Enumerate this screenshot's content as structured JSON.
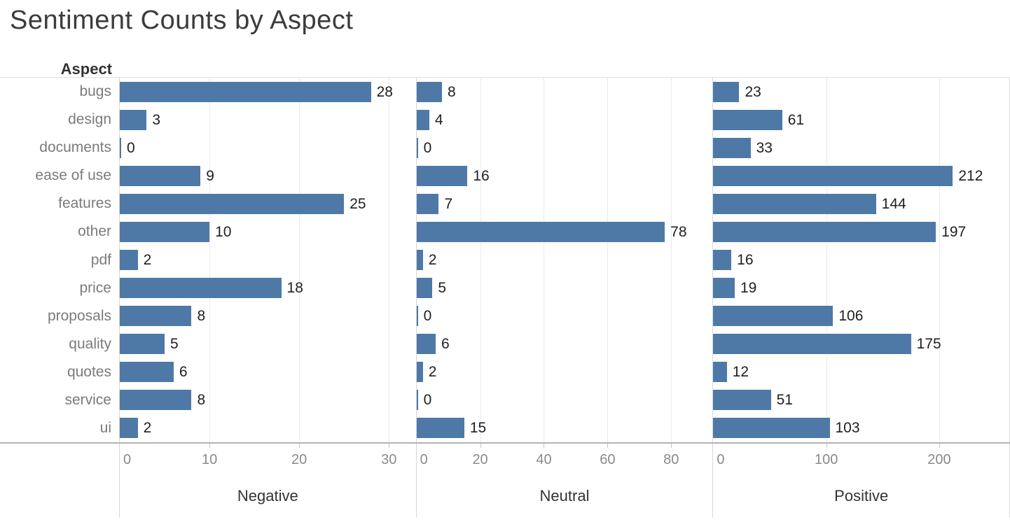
{
  "colors": {
    "bar": "#4e79a7",
    "gridline": "#eaeaea",
    "panel_border": "#d8d8d8",
    "axis_line": "#b3b3b3",
    "title_text": "#3d3b3b",
    "category_text": "#7b7b7b",
    "value_text": "#1f1f1f",
    "tick_text": "#8a8a8a",
    "panel_label_text": "#333333"
  },
  "chart_data": {
    "type": "bar",
    "orientation": "horizontal",
    "title": "Sentiment Counts by Aspect",
    "row_axis_label": "Aspect",
    "grid": true,
    "legend": "none",
    "categories": [
      "bugs",
      "design",
      "documents",
      "ease of use",
      "features",
      "other",
      "pdf",
      "price",
      "proposals",
      "quality",
      "quotes",
      "service",
      "ui"
    ],
    "series": [
      {
        "name": "Negative",
        "values": [
          28,
          3,
          0,
          9,
          25,
          10,
          2,
          18,
          8,
          5,
          6,
          8,
          2
        ],
        "axis_ticks": [
          0,
          10,
          20,
          30
        ],
        "axis_max": 33
      },
      {
        "name": "Neutral",
        "values": [
          8,
          4,
          0,
          16,
          7,
          78,
          2,
          5,
          0,
          6,
          2,
          0,
          15
        ],
        "axis_ticks": [
          0,
          20,
          40,
          60,
          80
        ],
        "axis_max": 93
      },
      {
        "name": "Positive",
        "values": [
          23,
          61,
          33,
          212,
          144,
          197,
          16,
          19,
          106,
          175,
          12,
          51,
          103
        ],
        "axis_ticks": [
          0,
          100,
          200
        ],
        "axis_max": 262
      }
    ]
  }
}
